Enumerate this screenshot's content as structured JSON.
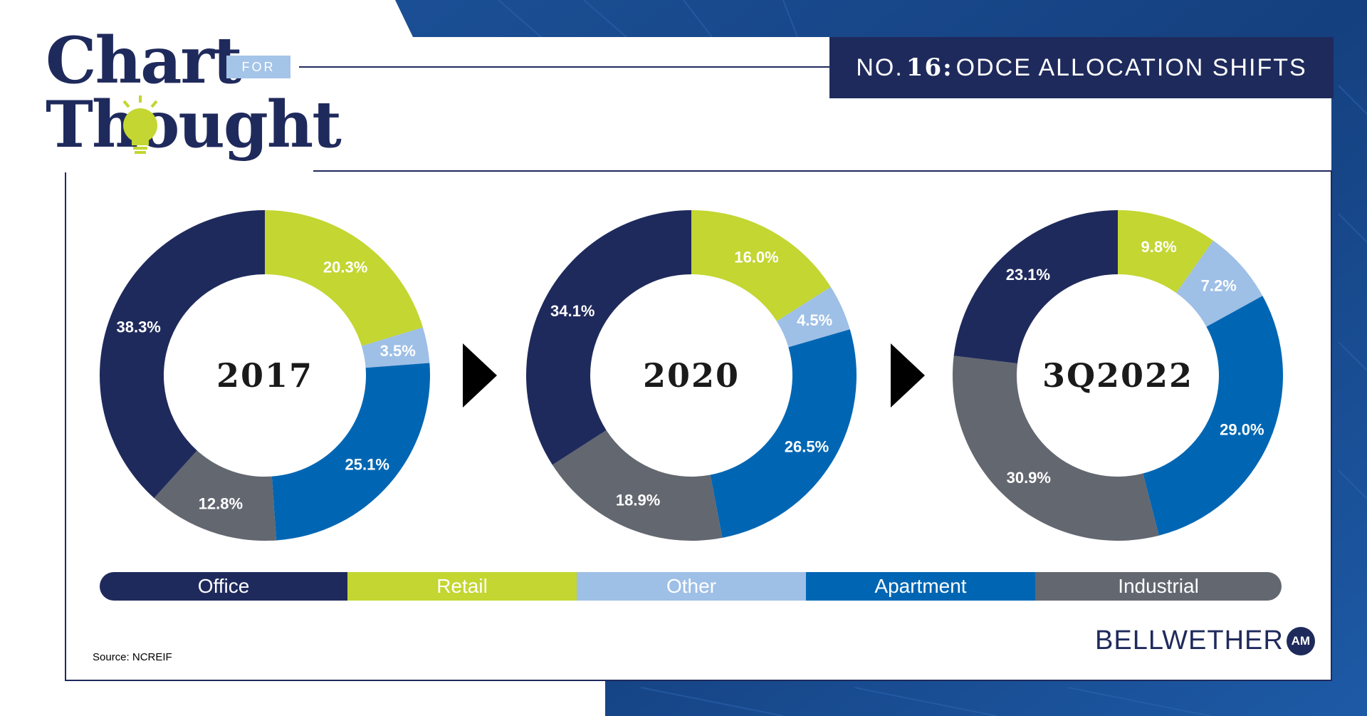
{
  "header": {
    "logo_word1": "Chart",
    "logo_for": "FOR",
    "logo_word2": "Thought",
    "title_prefix": "NO.",
    "title_number": "16:",
    "title_text": "ODCE ALLOCATION SHIFTS"
  },
  "colors": {
    "Office": "#1f2a5c",
    "Retail": "#c3d631",
    "Other": "#9ebfe6",
    "Apartment": "#0066b3",
    "Industrial": "#636770",
    "background_blue": "#1b4f95"
  },
  "chart_data": [
    {
      "type": "pie",
      "title": "2017",
      "labels": [
        "Retail",
        "Other",
        "Apartment",
        "Industrial",
        "Office"
      ],
      "values": [
        20.3,
        3.5,
        25.1,
        12.8,
        38.3
      ],
      "value_labels": [
        "20.3%",
        "3.5%",
        "25.1%",
        "12.8%",
        "38.3%"
      ]
    },
    {
      "type": "pie",
      "title": "2020",
      "labels": [
        "Retail",
        "Other",
        "Apartment",
        "Industrial",
        "Office"
      ],
      "values": [
        16.0,
        4.5,
        26.5,
        18.9,
        34.1
      ],
      "value_labels": [
        "16.0%",
        "4.5%",
        "26.5%",
        "18.9%",
        "34.1%"
      ]
    },
    {
      "type": "pie",
      "title": "3Q2022",
      "labels": [
        "Retail",
        "Other",
        "Apartment",
        "Industrial",
        "Office"
      ],
      "values": [
        9.8,
        7.2,
        29.0,
        30.9,
        23.1
      ],
      "value_labels": [
        "9.8%",
        "7.2%",
        "29.0%",
        "30.9%",
        "23.1%"
      ]
    }
  ],
  "legend": {
    "items": [
      {
        "label": "Office",
        "color": "#1f2a5c"
      },
      {
        "label": "Retail",
        "color": "#c3d631"
      },
      {
        "label": "Other",
        "color": "#9ebfe6"
      },
      {
        "label": "Apartment",
        "color": "#0066b3"
      },
      {
        "label": "Industrial",
        "color": "#636770"
      }
    ]
  },
  "footer": {
    "source": "Source: NCREIF",
    "brand": "BELLWETHER",
    "brand_badge": "AM"
  }
}
